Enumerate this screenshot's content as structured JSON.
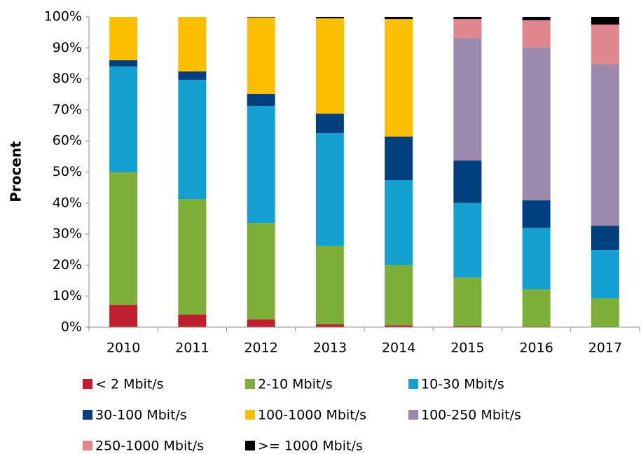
{
  "chart_data": {
    "type": "stacked_bar",
    "y_label": "Procent",
    "categories": [
      "2010",
      "2011",
      "2012",
      "2013",
      "2014",
      "2015",
      "2016",
      "2017"
    ],
    "series": [
      {
        "name": "< 2 Mbit/s",
        "color": "#be1e2d",
        "values": [
          7.2,
          4.1,
          2.5,
          0.9,
          0.6,
          0.4,
          0.2,
          0.1
        ]
      },
      {
        "name": "2-10 Mbit/s",
        "color": "#7dae38",
        "values": [
          42.7,
          37.2,
          31.1,
          25.3,
          19.5,
          15.6,
          12,
          9.2
        ]
      },
      {
        "name": "10-30 Mbit/s",
        "color": "#13a0d0",
        "values": [
          34.1,
          38.4,
          37.7,
          36.3,
          27.3,
          24,
          19.8,
          15.5
        ]
      },
      {
        "name": "30-100 Mbit/s",
        "color": "#003f7d",
        "values": [
          2,
          2.7,
          3.9,
          6.3,
          14,
          13.7,
          8.9,
          7.9
        ]
      },
      {
        "name": "100-1000 Mbit/s",
        "color": "#fcbf00",
        "values": [
          14,
          17.6,
          24.6,
          30.7,
          37.9,
          0,
          0,
          0
        ]
      },
      {
        "name": "100-250 Mbit/s",
        "color": "#9b8aad",
        "values": [
          0,
          0,
          0,
          0,
          0,
          39.5,
          49.2,
          52
        ]
      },
      {
        "name": "250-1000 Mbit/s",
        "color": "#e0868d",
        "values": [
          0,
          0,
          0,
          0,
          0,
          6.1,
          8.8,
          12.8
        ]
      },
      {
        "name": ">= 1000 Mbit/s",
        "color": "#000000",
        "values": [
          0,
          0,
          0.2,
          0.5,
          0.7,
          0.7,
          1.1,
          2.5
        ]
      }
    ],
    "ylim": [
      0,
      100
    ],
    "yticks": [
      {
        "value": 0,
        "label": "0%"
      },
      {
        "value": 10,
        "label": "10%"
      },
      {
        "value": 20,
        "label": "20%"
      },
      {
        "value": 30,
        "label": "30%"
      },
      {
        "value": 40,
        "label": "40%"
      },
      {
        "value": 50,
        "label": "50%"
      },
      {
        "value": 60,
        "label": "60%"
      },
      {
        "value": 70,
        "label": "70%"
      },
      {
        "value": 80,
        "label": "80%"
      },
      {
        "value": 90,
        "label": "90%"
      },
      {
        "value": 100,
        "label": "100%"
      }
    ],
    "legend": "bottom"
  }
}
